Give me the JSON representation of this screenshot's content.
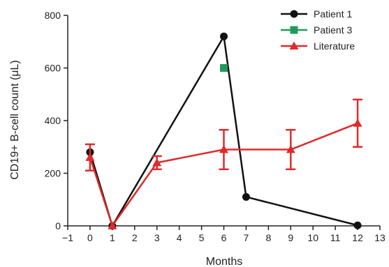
{
  "chart_data": {
    "type": "line",
    "title": "",
    "xlabel": "Months",
    "ylabel": "CD19+ B-cell count (μL)",
    "xlim": [
      -1,
      13
    ],
    "ylim": [
      0,
      800
    ],
    "xticks": [
      -1,
      0,
      1,
      2,
      3,
      4,
      5,
      6,
      7,
      8,
      9,
      10,
      11,
      12,
      13
    ],
    "yticks": [
      0,
      200,
      400,
      600,
      800
    ],
    "grid": false,
    "legend": "top-right",
    "series": [
      {
        "name": "Patient 1",
        "color": "#111111",
        "marker": "circle",
        "x": [
          0,
          1,
          6,
          7,
          12
        ],
        "y": [
          280,
          0,
          720,
          110,
          2
        ]
      },
      {
        "name": "Patient 3",
        "color": "#1f9a5a",
        "marker": "square",
        "x": [
          6
        ],
        "y": [
          600
        ]
      },
      {
        "name": "Literature",
        "color": "#e02a2a",
        "marker": "triangle",
        "x": [
          0,
          1,
          3,
          6,
          9,
          12
        ],
        "y": [
          260,
          0,
          240,
          290,
          290,
          390
        ],
        "err": [
          50,
          0,
          25,
          75,
          75,
          90
        ]
      }
    ]
  }
}
